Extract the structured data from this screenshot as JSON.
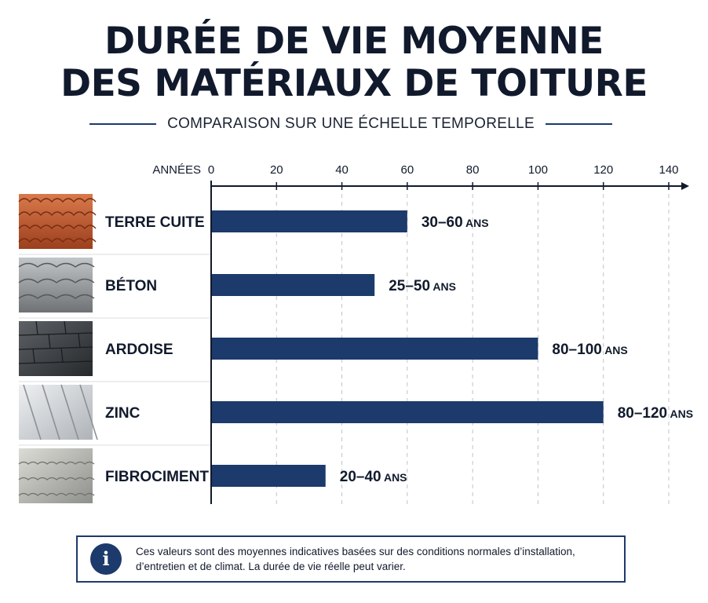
{
  "header": {
    "title_line1": "DURÉE DE VIE MOYENNE",
    "title_line2": "DES MATÉRIAUX DE TOITURE",
    "subtitle": "COMPARAISON SUR UNE ÉCHELLE TEMPORELLE"
  },
  "chart_data": {
    "type": "bar",
    "orientation": "horizontal",
    "title": "DURÉE DE VIE MOYENNE DES MATÉRIAUX DE TOITURE",
    "subtitle": "COMPARAISON SUR UNE ÉCHELLE TEMPORELLE",
    "xlabel": "ANNÉES",
    "xlim": [
      0,
      140
    ],
    "ticks": [
      0,
      20,
      40,
      60,
      80,
      100,
      120,
      140
    ],
    "grid": "vertical dashed",
    "bar_color": "#1c3a6b",
    "categories": [
      "TERRE CUITE",
      "BÉTON",
      "ARDOISE",
      "ZINC",
      "FIBROCIMENT"
    ],
    "values": [
      60,
      50,
      100,
      120,
      35
    ],
    "value_labels": [
      "30–60",
      "25–50",
      "80–100",
      "80–120",
      "20–40"
    ],
    "value_unit": "ANS",
    "ranges": [
      [
        30,
        60
      ],
      [
        25,
        50
      ],
      [
        80,
        100
      ],
      [
        80,
        120
      ],
      [
        20,
        40
      ]
    ],
    "swatch_icons": [
      "clay-tile-icon",
      "concrete-tile-icon",
      "slate-icon",
      "zinc-sheet-icon",
      "fiber-cement-icon"
    ]
  },
  "note": {
    "icon": "info-icon",
    "text": "Ces valeurs sont des moyennes indicatives basées sur des conditions normales d’installation, d’entretien et de climat. La durée de vie réelle peut varier."
  },
  "colors": {
    "primary": "#1c3a6b",
    "text": "#111a2c",
    "grid": "#bfc3c9"
  }
}
